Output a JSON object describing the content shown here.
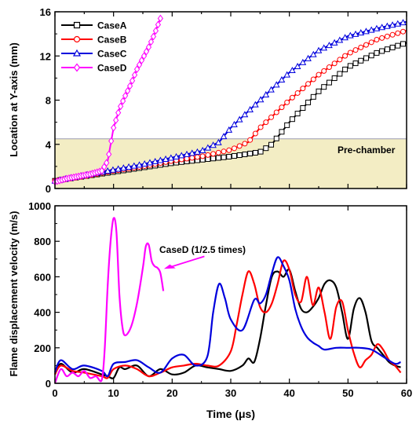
{
  "chart_data": [
    {
      "type": "line",
      "ylabel": "Location at Y-axis (mm)",
      "xlim": [
        0,
        60
      ],
      "ylim": [
        0,
        16
      ],
      "yticks": [
        0,
        4,
        8,
        12,
        16
      ],
      "region": {
        "label": "Pre-chamber",
        "y_from": 0,
        "y_to": 4.5,
        "color": "#f3edc4"
      },
      "legend": {
        "placement": "top-left"
      },
      "series": [
        {
          "name": "CaseA",
          "color": "#000000",
          "marker": "square",
          "x": [
            0,
            5,
            10,
            15,
            20,
            25,
            30,
            35,
            37,
            40,
            45,
            50,
            55,
            60
          ],
          "y": [
            0.7,
            1.1,
            1.5,
            1.9,
            2.3,
            2.6,
            2.9,
            3.3,
            4.0,
            6.0,
            8.8,
            11.0,
            12.3,
            13.2
          ]
        },
        {
          "name": "CaseB",
          "color": "#ff0000",
          "marker": "circle",
          "x": [
            0,
            5,
            10,
            15,
            20,
            25,
            30,
            33,
            35,
            40,
            45,
            50,
            55,
            60
          ],
          "y": [
            0.7,
            1.1,
            1.6,
            2.0,
            2.5,
            2.9,
            3.5,
            4.2,
            5.5,
            8.0,
            10.3,
            12.2,
            13.5,
            14.3
          ]
        },
        {
          "name": "CaseC",
          "color": "#0000dd",
          "marker": "triangle",
          "x": [
            0,
            5,
            10,
            15,
            20,
            25,
            28,
            30,
            35,
            40,
            45,
            50,
            55,
            60
          ],
          "y": [
            0.7,
            1.2,
            1.7,
            2.2,
            2.8,
            3.4,
            4.2,
            5.5,
            8.0,
            10.5,
            12.5,
            13.8,
            14.5,
            15.1
          ]
        },
        {
          "name": "CaseD",
          "color": "#ff00ff",
          "marker": "diamond",
          "x": [
            0,
            2,
            4,
            6,
            8,
            9,
            10,
            11,
            12,
            13,
            14,
            15,
            16,
            17,
            18
          ],
          "y": [
            0.6,
            0.9,
            1.1,
            1.3,
            1.6,
            2.5,
            5.5,
            7.2,
            8.4,
            9.5,
            10.8,
            11.8,
            12.8,
            14.0,
            15.4
          ]
        }
      ]
    },
    {
      "type": "line",
      "xlabel": "Time (μs)",
      "ylabel": "Flame displacement velocity (m/s)",
      "xlim": [
        0,
        60
      ],
      "ylim": [
        0,
        1000
      ],
      "xticks": [
        0,
        10,
        20,
        30,
        40,
        50,
        60
      ],
      "yticks": [
        0,
        200,
        400,
        600,
        800,
        1000
      ],
      "annotation": {
        "text": "CaseD (1/2.5 times)",
        "color": "#ff00ff"
      },
      "series": [
        {
          "name": "CaseA",
          "color": "#000000",
          "x": [
            0,
            1,
            3,
            5,
            8,
            9,
            10,
            11,
            12,
            14,
            16,
            18,
            20,
            22,
            24,
            26,
            28,
            30,
            32,
            33,
            34,
            35,
            36,
            37,
            38,
            39,
            40,
            41,
            42,
            43,
            44,
            45,
            46,
            47,
            48,
            49,
            50,
            51,
            52,
            53,
            54,
            55,
            56,
            57,
            58,
            59
          ],
          "y": [
            50,
            110,
            60,
            80,
            50,
            40,
            30,
            90,
            80,
            100,
            40,
            80,
            50,
            60,
            100,
            90,
            80,
            70,
            100,
            140,
            120,
            250,
            440,
            600,
            630,
            600,
            640,
            520,
            420,
            400,
            430,
            480,
            560,
            580,
            540,
            400,
            250,
            420,
            480,
            400,
            240,
            200,
            160,
            120,
            100,
            90
          ]
        },
        {
          "name": "CaseB",
          "color": "#ff0000",
          "x": [
            0,
            1,
            3,
            5,
            8,
            9,
            10,
            12,
            14,
            16,
            18,
            20,
            22,
            24,
            26,
            28,
            30,
            31,
            32,
            33,
            34,
            35,
            36,
            37,
            38,
            39,
            40,
            41,
            42,
            43,
            44,
            45,
            46,
            47,
            48,
            49,
            50,
            51,
            52,
            53,
            54,
            55,
            56,
            57,
            58,
            59
          ],
          "y": [
            50,
            100,
            70,
            60,
            40,
            30,
            80,
            100,
            80,
            40,
            60,
            90,
            100,
            110,
            100,
            100,
            180,
            330,
            500,
            630,
            560,
            430,
            400,
            450,
            560,
            690,
            640,
            500,
            460,
            600,
            440,
            540,
            400,
            250,
            430,
            460,
            300,
            170,
            90,
            130,
            160,
            220,
            190,
            130,
            100,
            60
          ]
        },
        {
          "name": "CaseC",
          "color": "#0000dd",
          "x": [
            0,
            1,
            3,
            5,
            8,
            9,
            10,
            12,
            14,
            16,
            18,
            20,
            22,
            24,
            26,
            27,
            28,
            29,
            30,
            32,
            34,
            35,
            36,
            37,
            38,
            39,
            40,
            41,
            42,
            43,
            44,
            45,
            46,
            48,
            50,
            52,
            54,
            56,
            58,
            59
          ],
          "y": [
            60,
            130,
            80,
            100,
            70,
            40,
            110,
            120,
            130,
            90,
            60,
            140,
            160,
            100,
            150,
            400,
            560,
            480,
            360,
            300,
            470,
            450,
            500,
            620,
            710,
            660,
            580,
            420,
            320,
            260,
            230,
            210,
            190,
            200,
            200,
            200,
            190,
            150,
            110,
            120
          ]
        },
        {
          "name": "CaseD",
          "color": "#ff00ff",
          "x": [
            0,
            1,
            2,
            3,
            4,
            5,
            6,
            7,
            8,
            8.5,
            9,
            9.5,
            10,
            10.5,
            11,
            11.5,
            12,
            13,
            14,
            15,
            15.5,
            16,
            16.5,
            17,
            17.5,
            18,
            18.5
          ],
          "y": [
            0,
            80,
            40,
            60,
            40,
            70,
            30,
            40,
            20,
            200,
            550,
            800,
            930,
            850,
            500,
            320,
            270,
            320,
            450,
            650,
            770,
            780,
            690,
            660,
            650,
            620,
            520
          ]
        }
      ]
    }
  ]
}
